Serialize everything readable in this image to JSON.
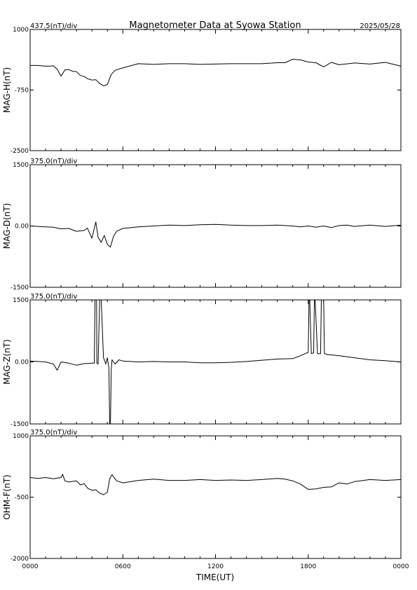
{
  "header": {
    "title": "Magnetometer Data at Syowa Station",
    "date": "2025/05/28"
  },
  "chart_data": {
    "type": "line",
    "xlabel": "TIME(UT)",
    "x_range": [
      0,
      24
    ],
    "x_ticks": [
      0,
      6,
      12,
      18,
      24
    ],
    "x_tick_labels": [
      "0000",
      "0600",
      "1200",
      "1800",
      "0000"
    ],
    "minor_tick_step_hours": 1,
    "panels": [
      {
        "ylabel": "MAG-H(nT)",
        "scale_label": "437.5(nT)/div",
        "ylim": [
          -2500,
          1000
        ],
        "y_tick_values": [
          1000,
          -750,
          -2500
        ],
        "y_tick_labels": [
          "1000",
          "-750",
          "-2500"
        ],
        "x": [
          0,
          0.5,
          1,
          1.25,
          1.5,
          1.75,
          2,
          2.25,
          2.5,
          2.75,
          3,
          3.25,
          3.5,
          3.75,
          4,
          4.25,
          4.5,
          4.75,
          5,
          5.25,
          5.5,
          6,
          7,
          8,
          9,
          10,
          11,
          12,
          13,
          14,
          15,
          16,
          16.5,
          17,
          17.5,
          18,
          18.5,
          19,
          19.5,
          20,
          21,
          22,
          23,
          24
        ],
        "values": [
          -40,
          -40,
          -60,
          -60,
          -50,
          -150,
          -350,
          -170,
          -160,
          -210,
          -220,
          -330,
          -360,
          -430,
          -460,
          -450,
          -560,
          -630,
          -590,
          -300,
          -180,
          -110,
          10,
          -10,
          10,
          10,
          -10,
          0,
          10,
          10,
          10,
          40,
          40,
          140,
          120,
          60,
          40,
          -80,
          50,
          -20,
          30,
          0,
          50,
          -60
        ]
      },
      {
        "ylabel": "MAG-D(nT)",
        "scale_label": "375.0(nT)/div",
        "ylim": [
          -1500,
          1500
        ],
        "y_tick_values": [
          1500,
          0,
          -1500
        ],
        "y_tick_labels": [
          "1500",
          "0.00",
          "-1500"
        ],
        "x": [
          0,
          1,
          1.5,
          2,
          2.5,
          3,
          3.5,
          3.7,
          4,
          4.25,
          4.4,
          4.6,
          4.8,
          5,
          5.2,
          5.4,
          5.6,
          6,
          7,
          8,
          9,
          10,
          11,
          12,
          13,
          14,
          15,
          16,
          17,
          17.5,
          18,
          18.5,
          19,
          19.5,
          20,
          20.5,
          21,
          22,
          23,
          24
        ],
        "values": [
          0,
          -20,
          -30,
          -70,
          -60,
          -130,
          -110,
          -50,
          -300,
          100,
          -280,
          -400,
          -230,
          -450,
          -520,
          -250,
          -130,
          -60,
          -20,
          0,
          20,
          10,
          30,
          40,
          20,
          10,
          10,
          20,
          0,
          -20,
          0,
          -30,
          0,
          -40,
          10,
          20,
          -10,
          20,
          -10,
          20
        ]
      },
      {
        "ylabel": "MAG-Z(nT)",
        "scale_label": "375.0(nT)/div",
        "ylim": [
          -1500,
          1500
        ],
        "y_tick_values": [
          1500,
          0,
          -1500
        ],
        "y_tick_labels": [
          "1500",
          "0.00",
          "-1500"
        ],
        "x": [
          0,
          1,
          1.5,
          1.75,
          2,
          2.5,
          3,
          3.5,
          4,
          4.15,
          4.2,
          4.3,
          4.32,
          4.4,
          4.5,
          4.6,
          4.75,
          4.9,
          5,
          5.1,
          5.15,
          5.2,
          5.25,
          5.3,
          5.5,
          5.75,
          6,
          7,
          8,
          9,
          10,
          11,
          12,
          13,
          14,
          15,
          16,
          17,
          17.5,
          17.8,
          18,
          18.05,
          18.1,
          18.2,
          18.35,
          18.4,
          18.45,
          18.6,
          18.8,
          18.85,
          18.9,
          19,
          19.05,
          19.1,
          19.2,
          20,
          21,
          22,
          23,
          24
        ],
        "values": [
          20,
          0,
          -50,
          -200,
          0,
          -30,
          -80,
          -40,
          -30,
          -30,
          1500,
          1500,
          -30,
          -50,
          1500,
          1500,
          100,
          -50,
          100,
          -150,
          -1500,
          -1500,
          -200,
          50,
          -50,
          50,
          20,
          0,
          10,
          0,
          0,
          -20,
          -20,
          -10,
          10,
          40,
          70,
          80,
          150,
          200,
          230,
          1500,
          1500,
          200,
          220,
          1500,
          1500,
          200,
          200,
          1500,
          1500,
          1500,
          200,
          200,
          180,
          150,
          100,
          50,
          30,
          0
        ]
      },
      {
        "ylabel": "OHM-F(nT)",
        "scale_label": "375.0(nT)/div",
        "ylim": [
          -2000,
          1000
        ],
        "y_tick_values": [
          1000,
          -500,
          -2000
        ],
        "y_tick_labels": [
          "1000",
          "-500",
          "-2000"
        ],
        "x": [
          0,
          0.5,
          1,
          1.5,
          2,
          2.1,
          2.25,
          2.5,
          3,
          3.25,
          3.5,
          3.75,
          4,
          4.25,
          4.5,
          4.75,
          5,
          5.15,
          5.3,
          5.6,
          6,
          7,
          8,
          9,
          10,
          11,
          12,
          13,
          14,
          15,
          16,
          16.5,
          17,
          17.5,
          18,
          18.5,
          19,
          19.5,
          20,
          20.5,
          21,
          22,
          23,
          24
        ],
        "values": [
          -20,
          -40,
          -20,
          -50,
          -20,
          60,
          -100,
          -130,
          -100,
          -200,
          -170,
          -290,
          -330,
          -320,
          -400,
          -440,
          -380,
          -50,
          50,
          -100,
          -150,
          -90,
          -60,
          -90,
          -90,
          -70,
          -90,
          -80,
          -90,
          -70,
          -40,
          -60,
          -100,
          -180,
          -310,
          -300,
          -260,
          -250,
          -150,
          -180,
          -120,
          -70,
          -90,
          -70
        ]
      }
    ]
  }
}
